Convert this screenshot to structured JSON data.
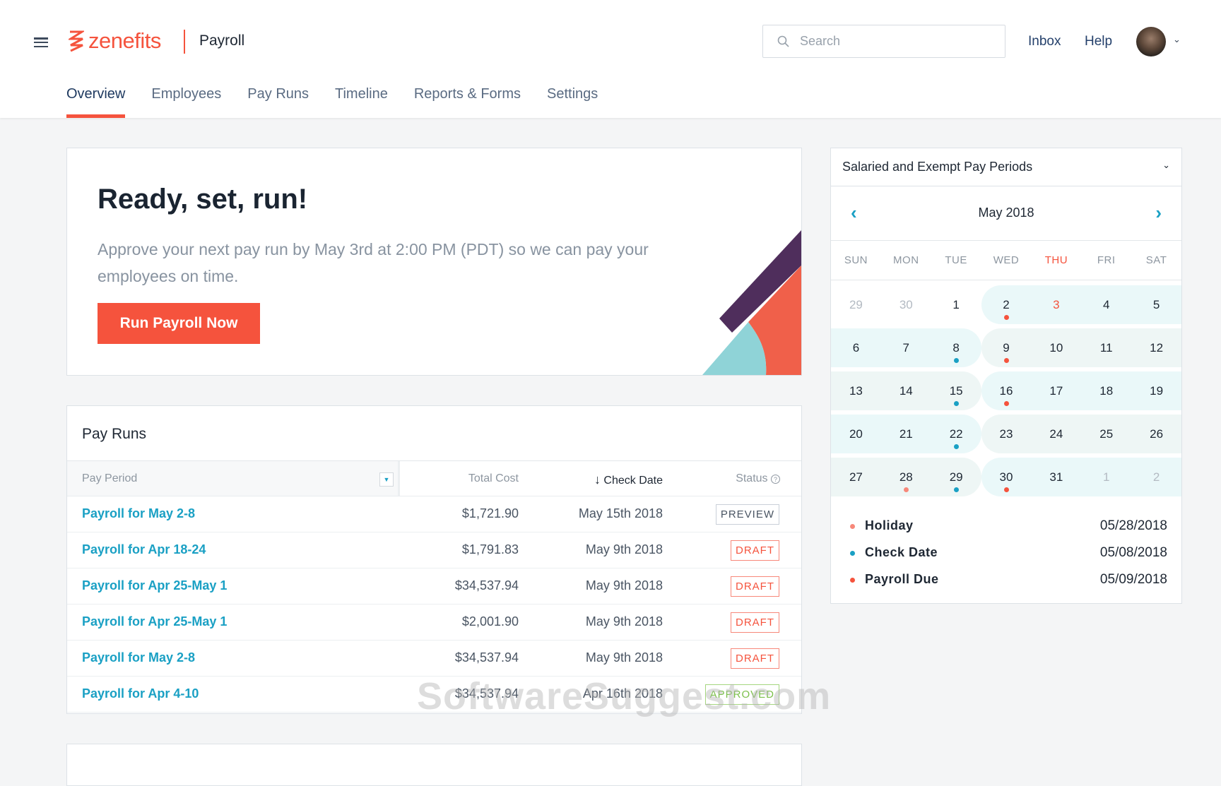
{
  "header": {
    "logo": "zenefits",
    "product": "Payroll",
    "search_placeholder": "Search",
    "links": [
      "Inbox",
      "Help"
    ]
  },
  "tabs": [
    {
      "label": "Overview",
      "active": true
    },
    {
      "label": "Employees"
    },
    {
      "label": "Pay Runs"
    },
    {
      "label": "Timeline"
    },
    {
      "label": "Reports & Forms"
    },
    {
      "label": "Settings"
    }
  ],
  "hero": {
    "title": "Ready, set, run!",
    "text": "Approve your next pay run by May 3rd at 2:00 PM (PDT) so we can pay your employees on time.",
    "button": "Run Payroll Now"
  },
  "pay_runs": {
    "title": "Pay Runs",
    "columns": [
      "Pay Period",
      "Total Cost",
      "Check Date",
      "Status"
    ],
    "rows": [
      {
        "period": "Payroll for May 2-8",
        "cost": "$1,721.90",
        "date": "May 15th 2018",
        "status": "PREVIEW"
      },
      {
        "period": "Payroll for Apr 18-24",
        "cost": "$1,791.83",
        "date": "May 9th 2018",
        "status": "DRAFT"
      },
      {
        "period": "Payroll for Apr 25-May 1",
        "cost": "$34,537.94",
        "date": "May 9th 2018",
        "status": "DRAFT"
      },
      {
        "period": "Payroll for Apr 25-May 1",
        "cost": "$2,001.90",
        "date": "May 9th 2018",
        "status": "DRAFT"
      },
      {
        "period": "Payroll for May 2-8",
        "cost": "$34,537.94",
        "date": "May 9th 2018",
        "status": "DRAFT"
      },
      {
        "period": "Payroll for Apr 4-10",
        "cost": "$34,537.94",
        "date": "Apr 16th 2018",
        "status": "APPROVED"
      }
    ]
  },
  "calendar": {
    "selector": "Salaried and Exempt Pay Periods",
    "month": "May 2018",
    "weekdays": [
      "SUN",
      "MON",
      "TUE",
      "WED",
      "THU",
      "FRI",
      "SAT"
    ],
    "highlight_weekday": "THU",
    "today": 3,
    "weeks": [
      [
        {
          "d": "29",
          "muted": true
        },
        {
          "d": "30",
          "muted": true
        },
        {
          "d": "1"
        },
        {
          "d": "2",
          "p": 0,
          "dot": "payroll"
        },
        {
          "d": "3",
          "p": 0,
          "today": true
        },
        {
          "d": "4",
          "p": 0
        },
        {
          "d": "5",
          "p": 0
        }
      ],
      [
        {
          "d": "6",
          "p": 0
        },
        {
          "d": "7",
          "p": 0
        },
        {
          "d": "8",
          "p": 0,
          "dot": "check"
        },
        {
          "d": "9",
          "p": 1,
          "dot": "payroll"
        },
        {
          "d": "10",
          "p": 1
        },
        {
          "d": "11",
          "p": 1
        },
        {
          "d": "12",
          "p": 1
        }
      ],
      [
        {
          "d": "13",
          "p": 1
        },
        {
          "d": "14",
          "p": 1
        },
        {
          "d": "15",
          "p": 1,
          "dot": "check"
        },
        {
          "d": "16",
          "p": 0,
          "dot": "payroll"
        },
        {
          "d": "17",
          "p": 0
        },
        {
          "d": "18",
          "p": 0
        },
        {
          "d": "19",
          "p": 0
        }
      ],
      [
        {
          "d": "20",
          "p": 0
        },
        {
          "d": "21",
          "p": 0
        },
        {
          "d": "22",
          "p": 0,
          "dot": "check"
        },
        {
          "d": "23",
          "p": 1
        },
        {
          "d": "24",
          "p": 1
        },
        {
          "d": "25",
          "p": 1
        },
        {
          "d": "26",
          "p": 1
        }
      ],
      [
        {
          "d": "27",
          "p": 1
        },
        {
          "d": "28",
          "p": 1,
          "dot": "holiday"
        },
        {
          "d": "29",
          "p": 1,
          "dot": "check"
        },
        {
          "d": "30",
          "p": 0,
          "dot": "payroll"
        },
        {
          "d": "31",
          "p": 0
        },
        {
          "d": "1",
          "p": 0,
          "muted": true
        },
        {
          "d": "2",
          "p": 0,
          "muted": true
        }
      ]
    ],
    "legend": [
      {
        "key": "holiday",
        "label": "Holiday",
        "date": "05/28/2018"
      },
      {
        "key": "check",
        "label": "Check Date",
        "date": "05/08/2018"
      },
      {
        "key": "payroll",
        "label": "Payroll Due",
        "date": "05/09/2018"
      }
    ]
  },
  "colors": {
    "accent": "#f5533d",
    "link": "#1aa0c4",
    "holiday": "#f7887a",
    "check": "#1aa0c4",
    "payroll": "#f5533d"
  },
  "watermark": "SoftwareSuggest.com"
}
